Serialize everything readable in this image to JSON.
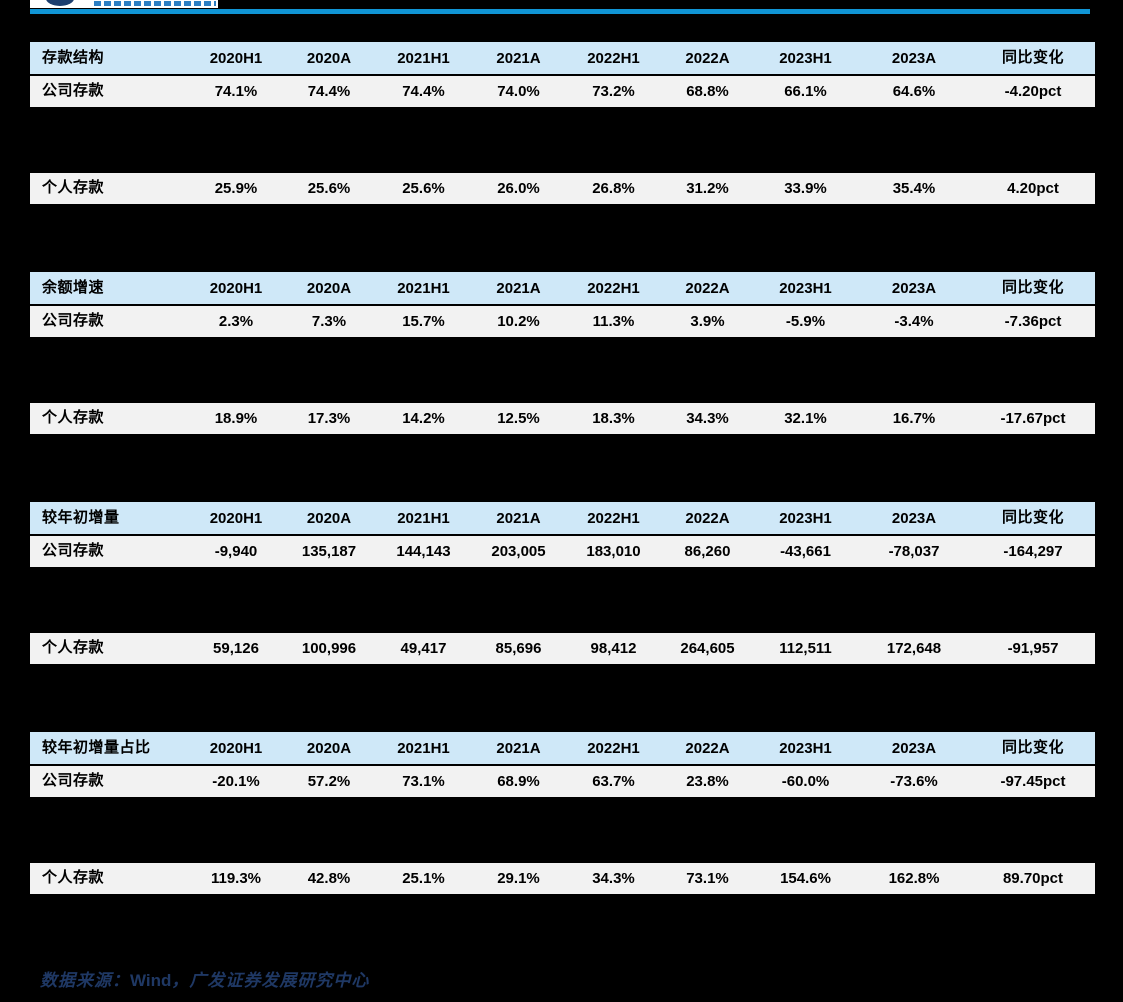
{
  "theme": {
    "background": "#000000",
    "accent_line": "#1095d5",
    "table_header_bg": "#cfe8f8",
    "table_row_bg": "#f2f2f2",
    "table_text": "#000000",
    "source_text": "#1f3864",
    "logo_navy": "#1c3e6e",
    "logo_blue": "#2c7fc4"
  },
  "columns": [
    "2020H1",
    "2020A",
    "2021H1",
    "2021A",
    "2022H1",
    "2022A",
    "2023H1",
    "2023A",
    "同比变化"
  ],
  "tables": [
    {
      "title": "存款结构",
      "rows": [
        {
          "label": "公司存款",
          "values": [
            "74.1%",
            "74.4%",
            "74.4%",
            "74.0%",
            "73.2%",
            "68.8%",
            "66.1%",
            "64.6%",
            "-4.20pct"
          ]
        },
        {
          "label": "个人存款",
          "values": [
            "25.9%",
            "25.6%",
            "25.6%",
            "26.0%",
            "26.8%",
            "31.2%",
            "33.9%",
            "35.4%",
            "4.20pct"
          ]
        }
      ]
    },
    {
      "title": "余额增速",
      "rows": [
        {
          "label": "公司存款",
          "values": [
            "2.3%",
            "7.3%",
            "15.7%",
            "10.2%",
            "11.3%",
            "3.9%",
            "-5.9%",
            "-3.4%",
            "-7.36pct"
          ]
        },
        {
          "label": "个人存款",
          "values": [
            "18.9%",
            "17.3%",
            "14.2%",
            "12.5%",
            "18.3%",
            "34.3%",
            "32.1%",
            "16.7%",
            "-17.67pct"
          ]
        }
      ]
    },
    {
      "title": "较年初增量",
      "rows": [
        {
          "label": "公司存款",
          "values": [
            "-9,940",
            "135,187",
            "144,143",
            "203,005",
            "183,010",
            "86,260",
            "-43,661",
            "-78,037",
            "-164,297"
          ]
        },
        {
          "label": "个人存款",
          "values": [
            "59,126",
            "100,996",
            "49,417",
            "85,696",
            "98,412",
            "264,605",
            "112,511",
            "172,648",
            "-91,957"
          ]
        }
      ]
    },
    {
      "title": "较年初增量占比",
      "rows": [
        {
          "label": "公司存款",
          "values": [
            "-20.1%",
            "57.2%",
            "73.1%",
            "68.9%",
            "63.7%",
            "23.8%",
            "-60.0%",
            "-73.6%",
            "-97.45pct"
          ]
        },
        {
          "label": "个人存款",
          "values": [
            "119.3%",
            "42.8%",
            "25.1%",
            "29.1%",
            "34.3%",
            "73.1%",
            "154.6%",
            "162.8%",
            "89.70pct"
          ]
        }
      ]
    }
  ],
  "source": {
    "prefix": "数据来源：",
    "vendor": "Wind",
    "suffix": "，广发证券发展研究中心"
  }
}
